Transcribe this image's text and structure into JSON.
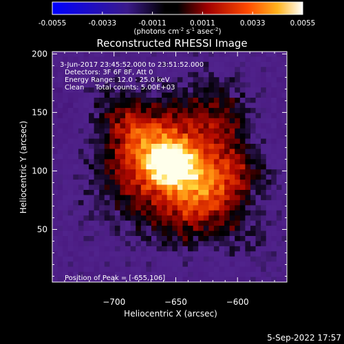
{
  "colorbar": {
    "tick_labels": [
      "-0.0055",
      "-0.0033",
      "-0.0011",
      "0.0011",
      "0.0033",
      "0.0055"
    ],
    "range": [
      -0.0055,
      0.0055
    ],
    "unit_prefix": "(photons cm",
    "unit_sup1": "-2",
    "unit_mid": " s",
    "unit_sup2": "-1",
    "unit_mid2": " asec",
    "unit_sup3": "-2",
    "unit_suffix": ")"
  },
  "plot": {
    "title": "Reconstructed RHESSI Image",
    "info_lines": [
      " 3-Jun-2017 23:45:52.000 to 23:51:52.000",
      "Detectors: 3F 6F 8F, Att 0",
      "Energy Range: 12.0 - 25.0 keV",
      "Clean     Total counts: 5.00E+03"
    ],
    "peak_label": "Position of Peak = [-655,106]"
  },
  "footer": {
    "timestamp": "5-Sep-2022 17:57"
  },
  "chart_data": {
    "type": "heatmap",
    "title": "Reconstructed RHESSI Image",
    "xlabel": "Heliocentric X (arcsec)",
    "ylabel": "Heliocentric Y (arcsec)",
    "xlim": [
      -750,
      -560
    ],
    "ylim": [
      5,
      202
    ],
    "x_ticks": [
      -700,
      -650,
      -600
    ],
    "x_tick_labels": [
      "−700",
      "−650",
      "−600"
    ],
    "y_ticks": [
      50,
      100,
      150,
      200
    ],
    "y_tick_labels": [
      "50",
      "100",
      "150",
      "200"
    ],
    "peak": {
      "x": -655,
      "y": 106
    },
    "value_range": [
      -0.0055,
      0.0055
    ],
    "colormap": [
      "#0000ff",
      "#5a2a8a",
      "#000000",
      "#b40000",
      "#ff5a00",
      "#ffd21e",
      "#ffffff"
    ]
  }
}
